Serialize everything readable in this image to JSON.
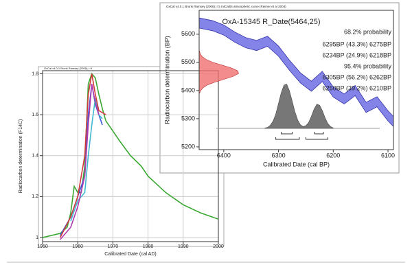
{
  "chart_data": [
    {
      "type": "line",
      "title": "OxCal v4.0.1 Bronk Ramsey (2006); r:5",
      "x_label": "Calibrated Date (cal AD)",
      "y_label": "Radiocarbon determination (F14C)",
      "xlim": [
        1950,
        2000
      ],
      "xticks": [
        1950,
        1960,
        1970,
        1980,
        1990,
        2000
      ],
      "ylim": [
        0.98,
        1.815
      ],
      "yticks": [
        1,
        1.2,
        1.4,
        1.6,
        1.8
      ],
      "grid": true,
      "series": [
        {
          "color": "#3aa832",
          "x": [
            1950,
            1955,
            1957,
            1958,
            1959,
            1960,
            1961,
            1962,
            1963,
            1964,
            1965,
            1966,
            1967,
            1968,
            1970,
            1972,
            1975,
            1978,
            1980,
            1985,
            1990,
            1995,
            2000
          ],
          "values": [
            1.0,
            1.02,
            1.05,
            1.12,
            1.25,
            1.22,
            1.22,
            1.35,
            1.75,
            1.8,
            1.78,
            1.7,
            1.63,
            1.57,
            1.52,
            1.47,
            1.4,
            1.35,
            1.3,
            1.22,
            1.16,
            1.12,
            1.09
          ]
        },
        {
          "color": "#3b5bd6",
          "x": [
            1955,
            1958,
            1960,
            1962,
            1963,
            1964,
            1965,
            1966,
            1967
          ],
          "values": [
            1.01,
            1.1,
            1.2,
            1.3,
            1.6,
            1.75,
            1.65,
            1.6,
            1.55
          ]
        },
        {
          "color": "#40b8d0",
          "x": [
            1958,
            1960,
            1962,
            1963,
            1964,
            1965,
            1966,
            1967
          ],
          "values": [
            1.08,
            1.18,
            1.22,
            1.4,
            1.55,
            1.68,
            1.6,
            1.58
          ]
        },
        {
          "color": "#d23a3a",
          "x": [
            1955,
            1958,
            1960,
            1962,
            1963,
            1964,
            1965,
            1966,
            1968
          ],
          "values": [
            1.0,
            1.1,
            1.2,
            1.4,
            1.7,
            1.8,
            1.7,
            1.62,
            1.6
          ]
        },
        {
          "color": "#b03ab0",
          "x": [
            1955,
            1958,
            1960,
            1962,
            1963,
            1964,
            1965,
            1966
          ],
          "values": [
            0.99,
            1.05,
            1.15,
            1.3,
            1.55,
            1.75,
            1.66,
            1.6
          ]
        }
      ]
    },
    {
      "type": "calibration",
      "header": "OxCal v4.0.1 Bronk Ramsey (2006); r:5 IntCal04 atmospheric curve (Reimer et al 2004)",
      "title": "OxA-15345 R_Date(5464,25)",
      "x_label": "Calibrated Date (cal BP)",
      "y_label": "Radiocarbon determination (BP)",
      "xlim": [
        6445,
        6090
      ],
      "xticks": [
        6400,
        6300,
        6200,
        6100
      ],
      "ylim": [
        5190,
        5685
      ],
      "yticks": [
        5200,
        5300,
        5400,
        5500,
        5600
      ],
      "annotations": [
        "68.2% probability",
        "6295BP (43.3%) 6275BP",
        "6234BP (24.9%) 6218BP",
        "95.4% probability",
        "6305BP (56.2%) 6262BP",
        "6250BP (39.2%) 6210BP"
      ],
      "ranges_68": [
        [
          6295,
          6275
        ],
        [
          6234,
          6218
        ]
      ],
      "ranges_95": [
        [
          6305,
          6262
        ],
        [
          6250,
          6210
        ]
      ],
      "curve": {
        "color": "#5a5ae0",
        "x": [
          6445,
          6420,
          6400,
          6380,
          6360,
          6340,
          6320,
          6300,
          6280,
          6260,
          6240,
          6220,
          6200,
          6180,
          6160,
          6140,
          6120,
          6100,
          6090
        ],
        "upper": [
          5658,
          5648,
          5633,
          5608,
          5588,
          5578,
          5593,
          5558,
          5508,
          5463,
          5433,
          5468,
          5413,
          5388,
          5418,
          5358,
          5378,
          5328,
          5308
        ],
        "lower": [
          5622,
          5612,
          5597,
          5572,
          5552,
          5542,
          5557,
          5522,
          5472,
          5427,
          5397,
          5432,
          5377,
          5352,
          5382,
          5322,
          5342,
          5292,
          5272
        ]
      },
      "posterior": {
        "color": "#777777",
        "x": [
          6325,
          6320,
          6315,
          6310,
          6305,
          6300,
          6295,
          6290,
          6285,
          6280,
          6275,
          6270,
          6265,
          6260,
          6255,
          6250,
          6245,
          6240,
          6235,
          6230,
          6225,
          6220,
          6215,
          6210,
          6205,
          6200
        ],
        "values": [
          0.01,
          0.02,
          0.07,
          0.16,
          0.32,
          0.56,
          0.8,
          0.97,
          0.99,
          0.84,
          0.61,
          0.37,
          0.19,
          0.08,
          0.04,
          0.06,
          0.13,
          0.27,
          0.43,
          0.54,
          0.52,
          0.4,
          0.24,
          0.11,
          0.04,
          0.01
        ]
      },
      "date_distribution": {
        "color": "#f07070",
        "y": [
          5390,
          5400,
          5410,
          5420,
          5430,
          5440,
          5450,
          5460,
          5470,
          5480,
          5490,
          5500,
          5510,
          5520,
          5530,
          5540
        ],
        "values": [
          0.01,
          0.04,
          0.1,
          0.21,
          0.4,
          0.63,
          0.85,
          0.99,
          0.97,
          0.81,
          0.58,
          0.35,
          0.18,
          0.08,
          0.03,
          0.01
        ]
      }
    }
  ]
}
